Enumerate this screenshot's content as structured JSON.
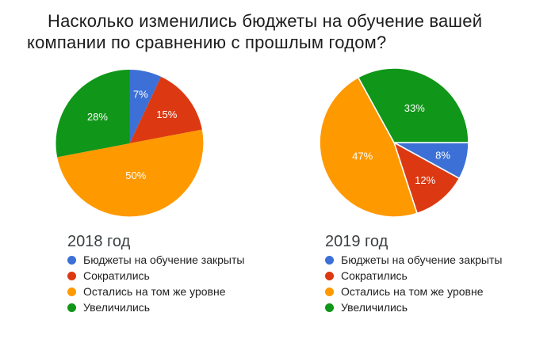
{
  "page": {
    "background": "#FFFFFF"
  },
  "title": {
    "line1": "Насколько изменились бюджеты на обучение вашей",
    "line2": "компании по сравнению с прошлым годом?"
  },
  "colors": {
    "blue": "#3C70D6",
    "red": "#DC3912",
    "orange": "#FF9900",
    "green": "#109618",
    "slice_label_text": "#FFFFFF",
    "title_text": "#1C1C1C",
    "legend_title_text": "#3C4043",
    "legend_item_text": "#212121"
  },
  "chart_data": [
    {
      "type": "pie",
      "title": "2018 год",
      "start_angle_deg": 0,
      "slice_border": false,
      "legend_position": "bottom",
      "grid": false,
      "slices": [
        {
          "label": "Бюджеты на обучение закрыты",
          "value": 7,
          "display": "7%",
          "color": "#3C70D6"
        },
        {
          "label": "Сократились",
          "value": 15,
          "display": "15%",
          "color": "#DC3912"
        },
        {
          "label": "Остались на том же уровне",
          "value": 50,
          "display": "50%",
          "color": "#FF9900"
        },
        {
          "label": "Увеличились",
          "value": 28,
          "display": "28%",
          "color": "#109618"
        }
      ]
    },
    {
      "type": "pie",
      "title": "2019 год",
      "start_angle_deg": 90,
      "slice_border": true,
      "legend_position": "bottom",
      "grid": false,
      "slices": [
        {
          "label": "Бюджеты на обучение закрыты",
          "value": 8,
          "display": "8%",
          "color": "#3C70D6"
        },
        {
          "label": "Сократились",
          "value": 12,
          "display": "12%",
          "color": "#DC3912"
        },
        {
          "label": "Остались на том же уровне",
          "value": 47,
          "display": "47%",
          "color": "#FF9900"
        },
        {
          "label": "Увеличились",
          "value": 33,
          "display": "33%",
          "color": "#109618"
        }
      ]
    }
  ]
}
